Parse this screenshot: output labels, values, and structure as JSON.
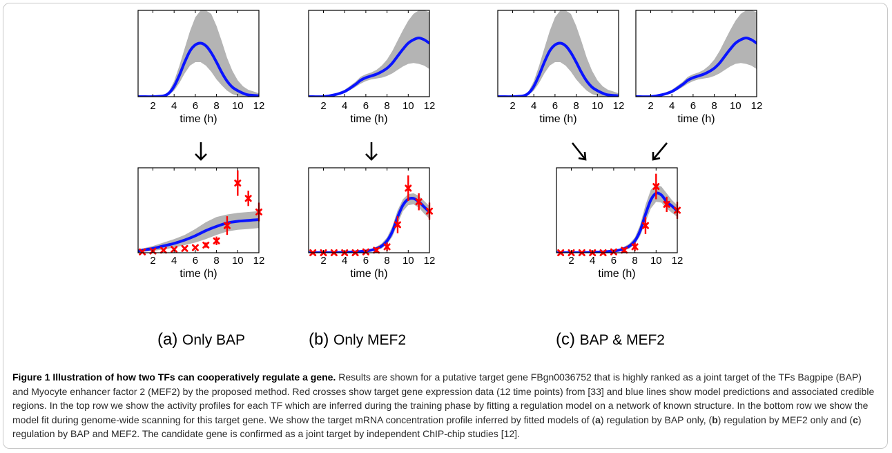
{
  "figure": {
    "caption_title": "Figure 1 Illustration of how two TFs can cooperatively regulate a gene.",
    "caption_body": [
      {
        "t": " Results are shown for a putative target gene FBgn0036752 that is highly ranked as a joint target of the TFs Bagpipe (BAP) and Myocyte enhancer factor 2 (MEF2) by the proposed method. Red crosses show target gene expression data (12 time points) from [33] and blue lines show model predictions and associated credible regions. In the top row we show the activity profiles for each TF which are inferred during the training phase by fitting a regulation model on a network of known structure. In the bottom row we show the model fit during genome-wide scanning for this target gene. We show the target mRNA concentration profile inferred by fitted models of (",
        "b": false
      },
      {
        "t": "a",
        "b": true
      },
      {
        "t": ") regulation by BAP only, (",
        "b": false
      },
      {
        "t": "b",
        "b": true
      },
      {
        "t": ") regulation by MEF2 only and (",
        "b": false
      },
      {
        "t": "c",
        "b": true
      },
      {
        "t": ") regulation by BAP and MEF2. The candidate gene is confirmed as a joint target by independent ChIP-chip studies [12].",
        "b": false
      }
    ],
    "sub_captions": [
      {
        "letter": "(a)",
        "name": "Only BAP"
      },
      {
        "letter": "(b)",
        "name": "Only MEF2"
      },
      {
        "letter": "(c)",
        "name": "BAP & MEF2"
      }
    ]
  },
  "colors": {
    "mean_line": "#0a14ff",
    "credible_band": "#b4b4b4",
    "data_cross": "#ff0000"
  },
  "chart_data": [
    {
      "id": "top-bap-1",
      "type": "line",
      "xlabel": "time (h)",
      "ylabel": "",
      "xlim": [
        0.6,
        12
      ],
      "ylim": [
        0,
        1
      ],
      "xticks": [
        2,
        4,
        6,
        8,
        10,
        12
      ],
      "x": [
        0.6,
        1,
        2,
        3,
        3.5,
        4,
        4.5,
        5,
        5.5,
        6,
        6.5,
        7,
        7.5,
        8,
        8.5,
        9,
        9.5,
        10,
        10.5,
        11,
        12
      ],
      "series": [
        {
          "role": "mean",
          "values": [
            0,
            0,
            0,
            0.01,
            0.04,
            0.12,
            0.25,
            0.4,
            0.53,
            0.6,
            0.62,
            0.59,
            0.51,
            0.4,
            0.28,
            0.18,
            0.11,
            0.07,
            0.04,
            0.02,
            0.01
          ]
        },
        {
          "role": "upper",
          "values": [
            0,
            0,
            0,
            0.02,
            0.06,
            0.18,
            0.36,
            0.56,
            0.76,
            0.92,
            1.0,
            1.0,
            0.96,
            0.82,
            0.64,
            0.45,
            0.3,
            0.19,
            0.12,
            0.08,
            0.04
          ]
        },
        {
          "role": "lower",
          "values": [
            0,
            0,
            0,
            0,
            0.02,
            0.07,
            0.16,
            0.27,
            0.36,
            0.4,
            0.4,
            0.36,
            0.29,
            0.2,
            0.13,
            0.07,
            0.03,
            0.01,
            0,
            0,
            0
          ]
        }
      ]
    },
    {
      "id": "top-mef2-1",
      "type": "line",
      "xlabel": "time (h)",
      "ylabel": "",
      "xlim": [
        0.6,
        12
      ],
      "ylim": [
        0,
        1
      ],
      "xticks": [
        2,
        4,
        6,
        8,
        10,
        12
      ],
      "x": [
        0.6,
        1,
        2,
        3,
        4,
        5,
        5.5,
        6,
        6.5,
        7,
        7.5,
        8,
        8.5,
        9,
        9.5,
        10,
        10.5,
        11,
        11.5,
        12
      ],
      "series": [
        {
          "role": "mean",
          "values": [
            0,
            0,
            0,
            0.02,
            0.06,
            0.14,
            0.19,
            0.22,
            0.24,
            0.26,
            0.29,
            0.33,
            0.39,
            0.47,
            0.55,
            0.62,
            0.66,
            0.68,
            0.66,
            0.62
          ]
        },
        {
          "role": "upper",
          "values": [
            0,
            0,
            0,
            0.03,
            0.08,
            0.17,
            0.23,
            0.26,
            0.28,
            0.31,
            0.36,
            0.43,
            0.53,
            0.65,
            0.77,
            0.88,
            0.96,
            1.0,
            1.0,
            0.98
          ]
        },
        {
          "role": "lower",
          "values": [
            0,
            0,
            0,
            0.01,
            0.04,
            0.11,
            0.15,
            0.18,
            0.2,
            0.21,
            0.22,
            0.24,
            0.27,
            0.31,
            0.35,
            0.38,
            0.39,
            0.38,
            0.36,
            0.32
          ]
        }
      ]
    },
    {
      "id": "top-bap-2",
      "type": "line",
      "xlabel": "time (h)",
      "ylabel": "",
      "xlim": [
        0.6,
        12
      ],
      "ylim": [
        0,
        1
      ],
      "xticks": [
        2,
        4,
        6,
        8,
        10,
        12
      ],
      "x": [
        0.6,
        1,
        2,
        3,
        3.5,
        4,
        4.5,
        5,
        5.5,
        6,
        6.5,
        7,
        7.5,
        8,
        8.5,
        9,
        9.5,
        10,
        10.5,
        11,
        12
      ],
      "series": [
        {
          "role": "mean",
          "values": [
            0,
            0,
            0,
            0.01,
            0.04,
            0.12,
            0.25,
            0.4,
            0.53,
            0.6,
            0.62,
            0.59,
            0.51,
            0.4,
            0.28,
            0.18,
            0.11,
            0.07,
            0.04,
            0.02,
            0.01
          ]
        },
        {
          "role": "upper",
          "values": [
            0,
            0,
            0,
            0.02,
            0.06,
            0.18,
            0.36,
            0.56,
            0.76,
            0.92,
            1.0,
            1.0,
            0.96,
            0.82,
            0.64,
            0.45,
            0.3,
            0.19,
            0.12,
            0.08,
            0.04
          ]
        },
        {
          "role": "lower",
          "values": [
            0,
            0,
            0,
            0,
            0.02,
            0.07,
            0.16,
            0.27,
            0.36,
            0.4,
            0.4,
            0.36,
            0.29,
            0.2,
            0.13,
            0.07,
            0.03,
            0.01,
            0,
            0,
            0
          ]
        }
      ]
    },
    {
      "id": "top-mef2-2",
      "type": "line",
      "xlabel": "time (h)",
      "ylabel": "",
      "xlim": [
        0.6,
        12
      ],
      "ylim": [
        0,
        1
      ],
      "xticks": [
        2,
        4,
        6,
        8,
        10,
        12
      ],
      "x": [
        0.6,
        1,
        2,
        3,
        4,
        5,
        5.5,
        6,
        6.5,
        7,
        7.5,
        8,
        8.5,
        9,
        9.5,
        10,
        10.5,
        11,
        11.5,
        12
      ],
      "series": [
        {
          "role": "mean",
          "values": [
            0,
            0,
            0,
            0.02,
            0.06,
            0.14,
            0.19,
            0.22,
            0.24,
            0.26,
            0.29,
            0.33,
            0.39,
            0.47,
            0.55,
            0.62,
            0.66,
            0.68,
            0.66,
            0.62
          ]
        },
        {
          "role": "upper",
          "values": [
            0,
            0,
            0,
            0.03,
            0.08,
            0.17,
            0.23,
            0.26,
            0.28,
            0.31,
            0.36,
            0.43,
            0.53,
            0.65,
            0.77,
            0.88,
            0.96,
            1.0,
            1.0,
            0.98
          ]
        },
        {
          "role": "lower",
          "values": [
            0,
            0,
            0,
            0.01,
            0.04,
            0.11,
            0.15,
            0.18,
            0.2,
            0.21,
            0.22,
            0.24,
            0.27,
            0.31,
            0.35,
            0.38,
            0.39,
            0.38,
            0.36,
            0.32
          ]
        }
      ]
    },
    {
      "id": "bottom-a",
      "type": "line",
      "xlabel": "time (h)",
      "ylabel": "",
      "xlim": [
        0.6,
        12
      ],
      "ylim": [
        0,
        1
      ],
      "xticks": [
        2,
        4,
        6,
        8,
        10,
        12
      ],
      "x": [
        0.6,
        1,
        2,
        3,
        4,
        5,
        6,
        7,
        8,
        9,
        10,
        11,
        12
      ],
      "series": [
        {
          "role": "mean",
          "values": [
            0.02,
            0.03,
            0.05,
            0.08,
            0.11,
            0.15,
            0.2,
            0.26,
            0.31,
            0.35,
            0.37,
            0.38,
            0.39
          ]
        },
        {
          "role": "upper",
          "values": [
            0.04,
            0.05,
            0.08,
            0.12,
            0.16,
            0.21,
            0.28,
            0.36,
            0.42,
            0.45,
            0.47,
            0.48,
            0.49
          ]
        },
        {
          "role": "lower",
          "values": [
            0,
            0.01,
            0.02,
            0.04,
            0.06,
            0.09,
            0.12,
            0.16,
            0.21,
            0.25,
            0.27,
            0.28,
            0.29
          ]
        }
      ],
      "points": {
        "x": [
          1,
          2,
          3,
          4,
          5,
          6,
          7,
          8,
          9,
          10,
          11,
          12
        ],
        "y": [
          0.01,
          0.02,
          0.03,
          0.04,
          0.05,
          0.06,
          0.09,
          0.14,
          0.32,
          0.82,
          0.64,
          0.48
        ],
        "err": [
          0.01,
          0.01,
          0.01,
          0.01,
          0.01,
          0.015,
          0.03,
          0.05,
          0.11,
          0.15,
          0.09,
          0.11
        ]
      }
    },
    {
      "id": "bottom-b",
      "type": "line",
      "xlabel": "time (h)",
      "ylabel": "",
      "xlim": [
        0.6,
        12
      ],
      "ylim": [
        0,
        1
      ],
      "xticks": [
        2,
        4,
        6,
        8,
        10,
        12
      ],
      "x": [
        0.6,
        1,
        2,
        3,
        4,
        5,
        6,
        6.5,
        7,
        7.5,
        8,
        8.5,
        9,
        9.5,
        10,
        10.5,
        11,
        11.5,
        12
      ],
      "series": [
        {
          "role": "mean",
          "values": [
            0,
            0,
            0,
            0,
            0.005,
            0.01,
            0.02,
            0.03,
            0.05,
            0.08,
            0.14,
            0.25,
            0.42,
            0.56,
            0.63,
            0.64,
            0.6,
            0.54,
            0.48
          ]
        },
        {
          "role": "upper",
          "values": [
            0.01,
            0.01,
            0.01,
            0.01,
            0.015,
            0.02,
            0.03,
            0.045,
            0.07,
            0.11,
            0.18,
            0.31,
            0.5,
            0.63,
            0.69,
            0.7,
            0.67,
            0.61,
            0.55
          ]
        },
        {
          "role": "lower",
          "values": [
            0,
            0,
            0,
            0,
            0,
            0,
            0.01,
            0.015,
            0.03,
            0.05,
            0.1,
            0.19,
            0.34,
            0.49,
            0.56,
            0.57,
            0.53,
            0.46,
            0.4
          ]
        }
      ],
      "points": {
        "x": [
          1,
          2,
          3,
          4,
          5,
          6,
          7,
          8,
          9,
          10,
          11,
          12
        ],
        "y": [
          0,
          0,
          0,
          0,
          0,
          0.01,
          0.03,
          0.07,
          0.33,
          0.76,
          0.6,
          0.49
        ],
        "err": [
          0.01,
          0.01,
          0.01,
          0.01,
          0.01,
          0.015,
          0.03,
          0.05,
          0.1,
          0.15,
          0.1,
          0.1
        ]
      }
    },
    {
      "id": "bottom-c",
      "type": "line",
      "xlabel": "time (h)",
      "ylabel": "",
      "xlim": [
        0.6,
        12
      ],
      "ylim": [
        0,
        1
      ],
      "xticks": [
        2,
        4,
        6,
        8,
        10,
        12
      ],
      "x": [
        0.6,
        1,
        2,
        3,
        4,
        5,
        6,
        6.5,
        7,
        7.5,
        8,
        8.5,
        9,
        9.5,
        10,
        10.5,
        11,
        11.5,
        12
      ],
      "series": [
        {
          "role": "mean",
          "values": [
            0,
            0,
            0,
            0,
            0.005,
            0.01,
            0.02,
            0.03,
            0.05,
            0.08,
            0.14,
            0.26,
            0.45,
            0.62,
            0.7,
            0.68,
            0.6,
            0.55,
            0.49
          ]
        },
        {
          "role": "upper",
          "values": [
            0.01,
            0.01,
            0.01,
            0.01,
            0.015,
            0.02,
            0.03,
            0.045,
            0.07,
            0.11,
            0.18,
            0.33,
            0.56,
            0.74,
            0.8,
            0.78,
            0.7,
            0.62,
            0.56
          ]
        },
        {
          "role": "lower",
          "values": [
            0,
            0,
            0,
            0,
            0,
            0,
            0.01,
            0.015,
            0.03,
            0.05,
            0.1,
            0.2,
            0.36,
            0.52,
            0.6,
            0.59,
            0.52,
            0.47,
            0.42
          ]
        }
      ],
      "points": {
        "x": [
          1,
          2,
          3,
          4,
          5,
          6,
          7,
          8,
          9,
          10,
          11,
          12
        ],
        "y": [
          0,
          0,
          0,
          0,
          0,
          0.01,
          0.03,
          0.07,
          0.32,
          0.78,
          0.57,
          0.5
        ],
        "err": [
          0.01,
          0.01,
          0.01,
          0.01,
          0.01,
          0.015,
          0.03,
          0.05,
          0.1,
          0.15,
          0.09,
          0.1
        ]
      }
    }
  ]
}
